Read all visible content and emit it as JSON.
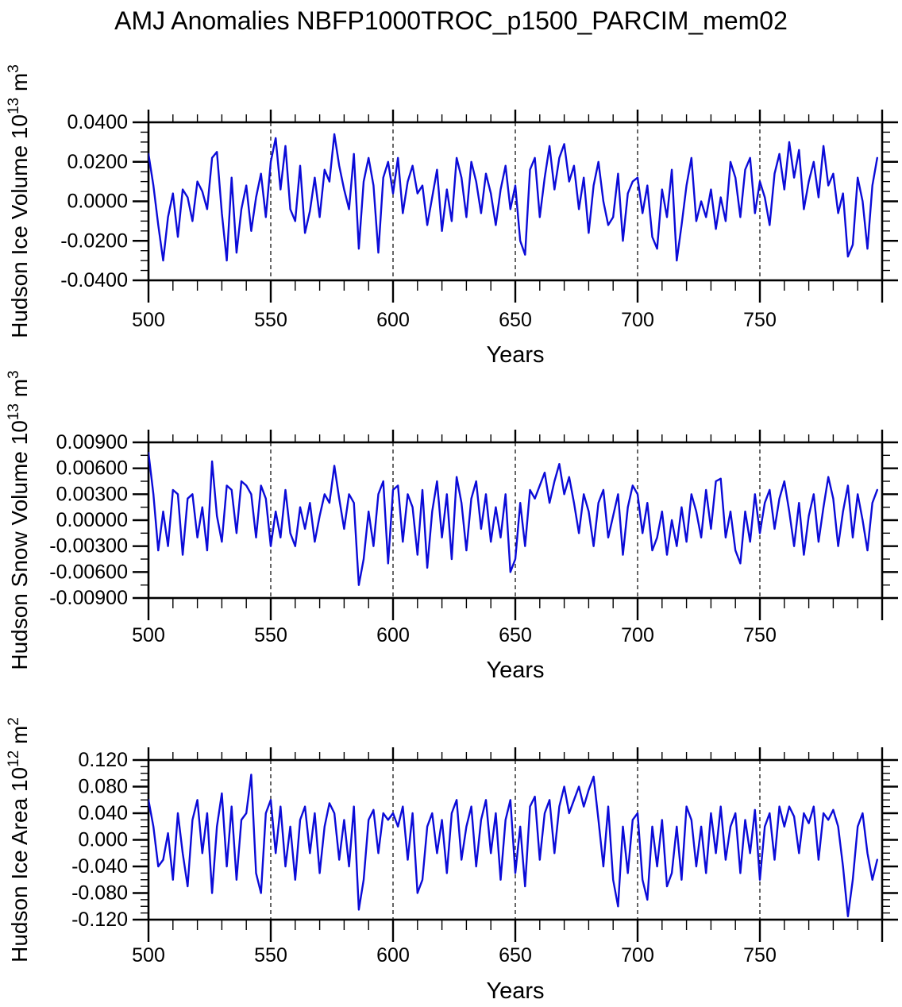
{
  "title": "AMJ Anomalies NBFP1000TROC_p1500_PARCIM_mem02",
  "line_color": "#0b0bd8",
  "chart_data": [
    {
      "type": "line",
      "series_name": "Hudson Ice Volume anomaly",
      "ylabel_parts": {
        "base": "Hudson Ice Volume 10",
        "exp": "13",
        "unit_base": " m",
        "unit_exp": "3"
      },
      "xlabel": "Years",
      "xlim": [
        500,
        800
      ],
      "xticks": [
        500,
        550,
        600,
        650,
        700,
        750
      ],
      "x_minor_step": 10,
      "ylim": [
        -0.04,
        0.04
      ],
      "ytick_values": [
        0.04,
        0.02,
        0.0,
        -0.02,
        -0.04
      ],
      "yticks": [
        "0.0400",
        "0.0200",
        "0.0000",
        "-0.0200",
        "-0.0400"
      ],
      "y_minor_step": 0.005,
      "gridlines_x": [
        550,
        600,
        650,
        700,
        750
      ],
      "grid": true,
      "legend": "none",
      "x_start": 500,
      "x_step": 2,
      "values": [
        0.024,
        0.008,
        -0.012,
        -0.03,
        -0.008,
        0.004,
        -0.018,
        0.006,
        0.002,
        -0.01,
        0.01,
        0.005,
        -0.004,
        0.022,
        0.025,
        -0.006,
        -0.03,
        0.012,
        -0.026,
        -0.004,
        0.008,
        -0.015,
        0.002,
        0.014,
        -0.008,
        0.02,
        0.032,
        0.006,
        0.028,
        -0.004,
        -0.01,
        0.018,
        -0.016,
        -0.005,
        0.012,
        -0.008,
        0.016,
        0.01,
        0.034,
        0.018,
        0.006,
        -0.004,
        0.024,
        -0.024,
        0.01,
        0.022,
        0.008,
        -0.026,
        0.012,
        0.02,
        0.004,
        0.022,
        -0.006,
        0.01,
        0.018,
        0.004,
        0.008,
        -0.012,
        0.002,
        0.016,
        -0.015,
        0.006,
        -0.01,
        0.022,
        0.012,
        -0.008,
        0.02,
        0.01,
        -0.006,
        0.014,
        0.004,
        -0.012,
        0.006,
        0.018,
        -0.004,
        0.008,
        -0.02,
        -0.027,
        0.016,
        0.022,
        -0.008,
        0.012,
        0.028,
        0.006,
        0.022,
        0.029,
        0.01,
        0.018,
        -0.004,
        0.012,
        -0.016,
        0.008,
        0.02,
        0.0,
        -0.012,
        -0.008,
        0.014,
        -0.02,
        0.004,
        0.01,
        0.012,
        -0.006,
        0.008,
        -0.018,
        -0.024,
        0.006,
        -0.008,
        0.016,
        -0.03,
        -0.012,
        0.008,
        0.022,
        -0.01,
        0.0,
        -0.008,
        0.006,
        -0.014,
        0.002,
        -0.01,
        0.02,
        0.012,
        -0.008,
        0.016,
        0.022,
        -0.006,
        0.01,
        0.002,
        -0.012,
        0.014,
        0.024,
        0.006,
        0.03,
        0.012,
        0.026,
        -0.004,
        0.01,
        0.02,
        0.002,
        0.028,
        0.008,
        0.014,
        -0.006,
        0.004,
        -0.028,
        -0.022,
        0.012,
        0.0,
        -0.024,
        0.008,
        0.022
      ]
    },
    {
      "type": "line",
      "series_name": "Hudson Snow Volume anomaly",
      "ylabel_parts": {
        "base": "Hudson Snow Volume 10",
        "exp": "13",
        "unit_base": " m",
        "unit_exp": "3"
      },
      "xlabel": "Years",
      "xlim": [
        500,
        800
      ],
      "xticks": [
        500,
        550,
        600,
        650,
        700,
        750
      ],
      "x_minor_step": 10,
      "ylim": [
        -0.009,
        0.009
      ],
      "ytick_values": [
        0.009,
        0.006,
        0.003,
        0.0,
        -0.003,
        -0.006,
        -0.009
      ],
      "yticks": [
        "0.00900",
        "0.00600",
        "0.00300",
        "0.00000",
        "-0.00300",
        "-0.00600",
        "-0.00900"
      ],
      "y_minor_step": 0.0015,
      "gridlines_x": [
        550,
        600,
        650,
        700,
        750
      ],
      "grid": true,
      "legend": "none",
      "x_start": 500,
      "x_step": 2,
      "values": [
        0.0078,
        0.003,
        -0.0035,
        0.001,
        -0.003,
        0.0035,
        0.003,
        -0.004,
        0.0025,
        0.003,
        -0.002,
        0.0015,
        -0.0035,
        0.0068,
        0.0005,
        -0.0025,
        0.004,
        0.0035,
        -0.0015,
        0.0045,
        0.004,
        0.003,
        -0.002,
        0.004,
        0.0025,
        -0.003,
        0.001,
        -0.002,
        0.0035,
        -0.0015,
        -0.003,
        0.0015,
        -0.001,
        0.002,
        -0.0025,
        0.0005,
        0.003,
        0.002,
        0.0063,
        0.0025,
        -0.001,
        0.003,
        0.002,
        -0.0075,
        -0.0045,
        0.001,
        -0.003,
        0.003,
        0.0045,
        -0.005,
        0.0035,
        0.004,
        -0.0025,
        0.003,
        0.0015,
        -0.004,
        0.0035,
        -0.0055,
        0.001,
        0.0045,
        -0.002,
        0.003,
        -0.0045,
        0.005,
        0.002,
        -0.0035,
        0.0025,
        0.0045,
        -0.001,
        0.003,
        -0.0025,
        0.0015,
        -0.002,
        0.003,
        -0.006,
        -0.0045,
        0.002,
        -0.003,
        0.0035,
        0.0025,
        0.004,
        0.0055,
        0.002,
        0.0045,
        0.0065,
        0.003,
        0.005,
        0.002,
        -0.0015,
        0.003,
        0.001,
        -0.003,
        0.002,
        0.0035,
        -0.002,
        0.0005,
        0.003,
        -0.004,
        0.0015,
        0.004,
        0.003,
        -0.0015,
        0.002,
        -0.0035,
        -0.002,
        0.001,
        -0.004,
        0.0,
        -0.003,
        0.0015,
        -0.0025,
        0.003,
        0.001,
        -0.002,
        0.0035,
        -0.001,
        0.0045,
        0.0048,
        -0.002,
        0.001,
        -0.0035,
        -0.005,
        0.001,
        -0.0025,
        0.003,
        -0.0015,
        0.002,
        0.0035,
        -0.001,
        0.0025,
        0.0045,
        0.001,
        -0.003,
        0.002,
        -0.004,
        0.0005,
        0.003,
        -0.0025,
        0.0015,
        0.005,
        0.0025,
        -0.003,
        0.001,
        0.004,
        -0.002,
        0.003,
        0.0,
        -0.0035,
        0.002,
        0.0035
      ]
    },
    {
      "type": "line",
      "series_name": "Hudson Ice Area anomaly",
      "ylabel_parts": {
        "base": "Hudson Ice Area 10",
        "exp": "12",
        "unit_base": " m",
        "unit_exp": "2"
      },
      "xlabel": "Years",
      "xlim": [
        500,
        800
      ],
      "xticks": [
        500,
        550,
        600,
        650,
        700,
        750
      ],
      "x_minor_step": 10,
      "ylim": [
        -0.12,
        0.12
      ],
      "ytick_values": [
        0.12,
        0.08,
        0.04,
        0.0,
        -0.04,
        -0.08,
        -0.12
      ],
      "yticks": [
        "0.120",
        "0.080",
        "0.040",
        "0.000",
        "-0.040",
        "-0.080",
        "-0.120"
      ],
      "y_minor_step": 0.01,
      "gridlines_x": [
        550,
        600,
        650,
        700,
        750
      ],
      "grid": true,
      "legend": "none",
      "x_start": 500,
      "x_step": 2,
      "values": [
        0.06,
        0.02,
        -0.04,
        -0.03,
        0.01,
        -0.06,
        0.04,
        -0.02,
        -0.07,
        0.03,
        0.06,
        -0.02,
        0.04,
        -0.08,
        0.02,
        0.07,
        -0.04,
        0.05,
        -0.06,
        0.03,
        0.04,
        0.098,
        -0.05,
        -0.08,
        0.04,
        0.06,
        -0.02,
        0.05,
        -0.04,
        0.02,
        -0.06,
        0.03,
        0.05,
        -0.02,
        0.04,
        -0.05,
        0.02,
        0.055,
        0.04,
        -0.03,
        0.03,
        -0.04,
        0.05,
        -0.105,
        -0.06,
        0.03,
        0.045,
        -0.02,
        0.04,
        0.03,
        0.04,
        0.02,
        0.05,
        -0.03,
        0.04,
        -0.08,
        -0.06,
        0.02,
        0.04,
        -0.02,
        0.03,
        -0.05,
        0.04,
        0.06,
        -0.03,
        0.02,
        0.05,
        -0.04,
        0.03,
        0.06,
        -0.02,
        0.04,
        -0.06,
        0.03,
        0.06,
        -0.05,
        0.02,
        -0.07,
        0.05,
        0.065,
        -0.03,
        0.04,
        0.06,
        -0.02,
        0.05,
        0.08,
        0.04,
        0.06,
        0.08,
        0.05,
        0.075,
        0.095,
        0.03,
        -0.04,
        0.05,
        -0.06,
        -0.1,
        0.02,
        -0.05,
        0.03,
        0.04,
        -0.06,
        -0.09,
        0.02,
        -0.04,
        0.03,
        -0.07,
        -0.05,
        0.02,
        -0.06,
        0.05,
        0.03,
        -0.04,
        0.02,
        -0.05,
        0.04,
        -0.02,
        0.05,
        -0.03,
        0.02,
        0.04,
        -0.05,
        0.03,
        -0.02,
        0.045,
        -0.06,
        0.02,
        0.04,
        -0.03,
        0.05,
        0.02,
        0.05,
        0.035,
        -0.02,
        0.04,
        0.025,
        0.05,
        -0.03,
        0.04,
        0.03,
        0.045,
        0.02,
        -0.04,
        -0.115,
        -0.06,
        0.02,
        0.04,
        -0.02,
        -0.06,
        -0.03
      ]
    }
  ]
}
